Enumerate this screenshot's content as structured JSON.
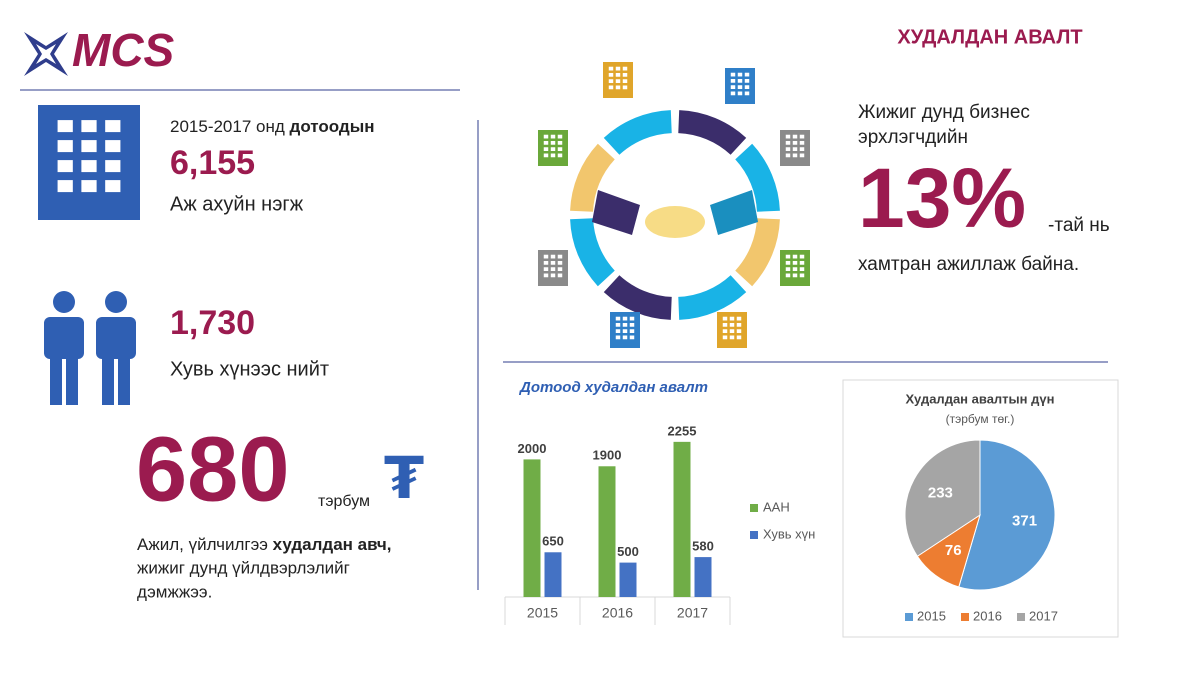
{
  "logo": "MCS",
  "header": {
    "title": "ХУДАЛДАН АВАЛТ"
  },
  "left": {
    "period": "2015-2017 онд",
    "period_bold": "дотоодын",
    "units_number": "6,155",
    "units_label": "Аж ахуйн нэгж",
    "people_number": "1,730",
    "people_label": "Хувь хүнээс нийт",
    "amount": "680",
    "amount_unit": "тэрбум",
    "currency": "₮",
    "desc_1": "Ажил, үйлчилгээ",
    "desc_1_bold": "худалдан авч,",
    "desc_2": "жижиг дунд үйлдвэрлэлийг",
    "desc_3": "дэмжжээ."
  },
  "right": {
    "line_1": "Жижиг дунд бизнес",
    "line_2": "эрхлэгчдийн",
    "percent": "13%",
    "suffix": "-тай нь",
    "line_3": "хамтран ажиллаж байна."
  },
  "chart_data": [
    {
      "type": "bar",
      "title": "Дотоод худалдан авалт",
      "categories": [
        "2015",
        "2016",
        "2017"
      ],
      "series": [
        {
          "name": "ААН",
          "color": "#70ad47",
          "values": [
            2000,
            1900,
            2255
          ]
        },
        {
          "name": "Хувь хүн",
          "color": "#4472c4",
          "values": [
            650,
            500,
            580
          ]
        }
      ],
      "ylim": [
        0,
        2500
      ],
      "legend": "right"
    },
    {
      "type": "pie",
      "title": "Худалдан авалтын дүн",
      "subtitle": "(тэрбум төг.)",
      "categories": [
        "2015",
        "2016",
        "2017"
      ],
      "values": [
        371,
        76,
        233
      ],
      "colors": [
        "#5b9bd5",
        "#ed7d31",
        "#a5a5a5"
      ],
      "legend": "bottom"
    }
  ]
}
